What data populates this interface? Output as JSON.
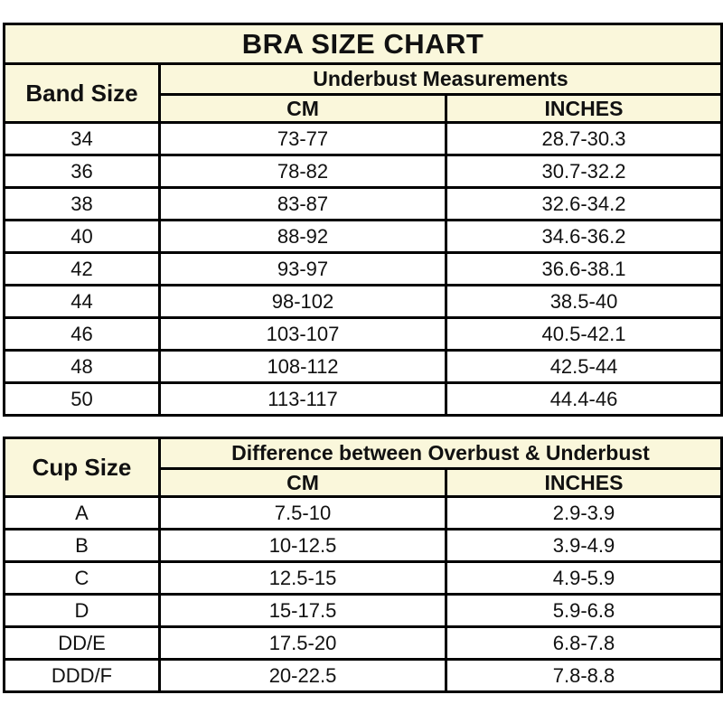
{
  "colors": {
    "header_bg": "#faf7db",
    "row_bg": "#ffffff",
    "border": "#000000",
    "text": "#111111"
  },
  "band_table": {
    "title": "BRA SIZE CHART",
    "corner_header": "Band Size",
    "group_header": "Underbust Measurements",
    "col_headers": [
      "CM",
      "INCHES"
    ],
    "rows": [
      {
        "band": "34",
        "cm": "73-77",
        "inches": "28.7-30.3"
      },
      {
        "band": "36",
        "cm": "78-82",
        "inches": "30.7-32.2"
      },
      {
        "band": "38",
        "cm": "83-87",
        "inches": "32.6-34.2"
      },
      {
        "band": "40",
        "cm": "88-92",
        "inches": "34.6-36.2"
      },
      {
        "band": "42",
        "cm": "93-97",
        "inches": "36.6-38.1"
      },
      {
        "band": "44",
        "cm": "98-102",
        "inches": "38.5-40"
      },
      {
        "band": "46",
        "cm": "103-107",
        "inches": "40.5-42.1"
      },
      {
        "band": "48",
        "cm": "108-112",
        "inches": "42.5-44"
      },
      {
        "band": "50",
        "cm": "113-117",
        "inches": "44.4-46"
      }
    ]
  },
  "cup_table": {
    "corner_header": "Cup Size",
    "group_header": "Difference between Overbust & Underbust",
    "col_headers": [
      "CM",
      "INCHES"
    ],
    "rows": [
      {
        "cup": "A",
        "cm": "7.5-10",
        "inches": "2.9-3.9"
      },
      {
        "cup": "B",
        "cm": "10-12.5",
        "inches": "3.9-4.9"
      },
      {
        "cup": "C",
        "cm": "12.5-15",
        "inches": "4.9-5.9"
      },
      {
        "cup": "D",
        "cm": "15-17.5",
        "inches": "5.9-6.8"
      },
      {
        "cup": "DD/E",
        "cm": "17.5-20",
        "inches": "6.8-7.8"
      },
      {
        "cup": "DDD/F",
        "cm": "20-22.5",
        "inches": "7.8-8.8"
      }
    ]
  }
}
